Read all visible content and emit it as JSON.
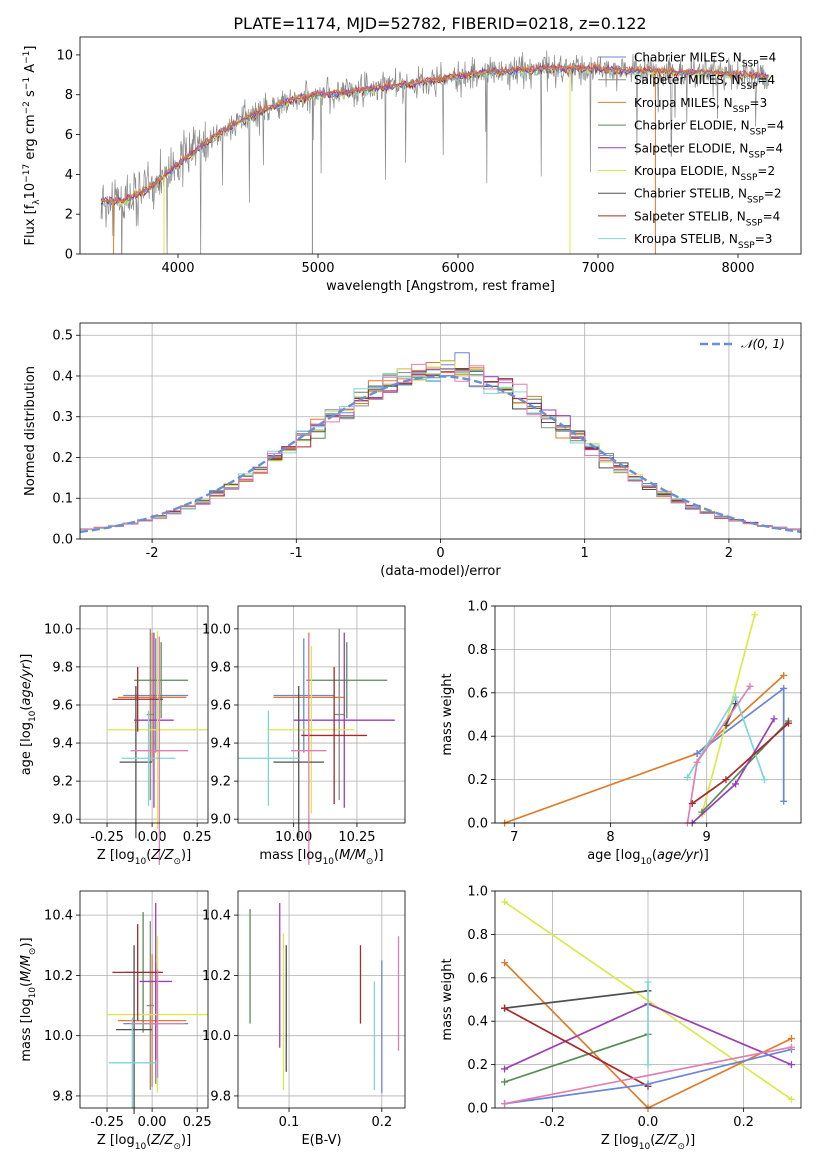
{
  "title": "PLATE=1174, MJD=52782, FIBERID=0218, z=0.122",
  "colors": {
    "Chabrier MILES": "#6b86d6",
    "Salpeter MILES": "#8a8a8a",
    "Kroupa MILES": "#e07b2a",
    "Chabrier ELODIE": "#5a8a5a",
    "Salpeter ELODIE": "#9b3fb5",
    "Kroupa ELODIE": "#dde84a",
    "Chabrier STELIB": "#505050",
    "Salpeter STELIB": "#a52a2a",
    "Kroupa STELIB": "#7fd6d6",
    "pink": "#e07fb4"
  },
  "chart_data": [
    {
      "type": "line",
      "xlabel": "wavelength [Angstrom, rest frame]",
      "ylabel": "Flux [f_λ10^-17 erg cm^-2 s^-1 A^-1]",
      "xlim": [
        3300,
        8450
      ],
      "ylim": [
        0,
        10.9
      ],
      "xticks": [
        4000,
        5000,
        6000,
        7000,
        8000
      ],
      "yticks": [
        0,
        2,
        4,
        6,
        8,
        10
      ],
      "grid": false,
      "legend_position": "top-right",
      "continuum": {
        "x": [
          3450,
          3600,
          3800,
          4000,
          4200,
          4400,
          4600,
          4800,
          5000,
          5200,
          5400,
          5600,
          5800,
          6000,
          6200,
          6400,
          6600,
          6800,
          7000,
          7200,
          7400,
          7600,
          7800,
          8000,
          8200
        ],
        "y": [
          2.7,
          2.6,
          3.3,
          4.5,
          5.6,
          6.5,
          7.2,
          7.7,
          8.0,
          8.1,
          8.3,
          8.5,
          8.7,
          8.9,
          9.1,
          9.2,
          9.3,
          9.3,
          9.3,
          9.2,
          9.2,
          9.1,
          9.1,
          9.0,
          8.9
        ]
      },
      "series": [
        {
          "name": "Chabrier MILES",
          "label_sub": "SSP",
          "n": 4
        },
        {
          "name": "Salpeter MILES",
          "label_sub": "SSP",
          "n": 4
        },
        {
          "name": "Kroupa MILES",
          "label_sub": "SSP",
          "n": 3
        },
        {
          "name": "Chabrier ELODIE",
          "label_sub": "SSP",
          "n": 4
        },
        {
          "name": "Salpeter ELODIE",
          "label_sub": "SSP",
          "n": 4
        },
        {
          "name": "Kroupa ELODIE",
          "label_sub": "SSP",
          "n": 2
        },
        {
          "name": "Chabrier STELIB",
          "label_sub": "SSP",
          "n": 2
        },
        {
          "name": "Salpeter STELIB",
          "label_sub": "SSP",
          "n": 4
        },
        {
          "name": "Kroupa STELIB",
          "label_sub": "SSP",
          "n": 3
        }
      ]
    },
    {
      "type": "histogram",
      "xlabel": "(data-model)/error",
      "ylabel": "Normed distribution",
      "xlim": [
        -2.5,
        2.5
      ],
      "ylim": [
        0,
        0.53
      ],
      "xticks": [
        -2,
        -1,
        0,
        1,
        2
      ],
      "yticks": [
        0.0,
        0.1,
        0.2,
        0.3,
        0.4,
        0.5
      ],
      "grid": true,
      "legend": "𝒩(0, 1)",
      "legend_position": "top-right",
      "bin_width": 0.1
    },
    {
      "type": "errorbar",
      "xlabel": "Z [log10(Z/Z☉)]",
      "ylabel": "age [log10(age/yr)]",
      "xlim": [
        -0.4,
        0.31
      ],
      "ylim": [
        8.98,
        10.12
      ],
      "xticks": [
        -0.25,
        0.0,
        0.25
      ],
      "yticks": [
        9.0,
        9.2,
        9.4,
        9.6,
        9.8,
        10.0
      ],
      "points": [
        {
          "c": "#6b86d6",
          "x": 0.02,
          "xe": 0.18,
          "y": 9.65,
          "ye": 0.3
        },
        {
          "c": "#8a8a8a",
          "x": -0.01,
          "xe": 0.02,
          "y": 9.55,
          "ye": 0.45
        },
        {
          "c": "#e07b2a",
          "x": 0.0,
          "xe": 0.19,
          "y": 9.64,
          "ye": 0.34
        },
        {
          "c": "#5a8a5a",
          "x": 0.05,
          "xe": 0.15,
          "y": 9.73,
          "ye": 0.2
        },
        {
          "c": "#9b3fb5",
          "x": 0.01,
          "xe": 0.11,
          "y": 9.52,
          "ye": 0.46
        },
        {
          "c": "#dde84a",
          "x": 0.03,
          "xe": 0.28,
          "y": 9.47,
          "ye": 0.52
        },
        {
          "c": "#505050",
          "x": -0.09,
          "xe": 0.09,
          "y": 9.3,
          "ye": 0.4
        },
        {
          "c": "#a52a2a",
          "x": -0.08,
          "xe": 0.14,
          "y": 9.63,
          "ye": 0.17
        },
        {
          "c": "#7fd6d6",
          "x": -0.02,
          "xe": 0.15,
          "y": 9.32,
          "ye": 0.25
        },
        {
          "c": "#e07fb4",
          "x": 0.04,
          "xe": 0.16,
          "y": 9.36,
          "ye": 0.6
        }
      ]
    },
    {
      "type": "errorbar",
      "xlabel": "mass [log10(M/M☉)]",
      "xlim": [
        9.78,
        10.44
      ],
      "ylim": [
        8.98,
        10.12
      ],
      "xticks": [
        10.0,
        10.25
      ],
      "yticks": [
        9.0,
        9.2,
        9.4,
        9.6,
        9.8,
        10.0
      ],
      "points": [
        {
          "c": "#6b86d6",
          "x": 10.04,
          "xe": 0.12,
          "y": 9.65,
          "ye": 0.3
        },
        {
          "c": "#8a8a8a",
          "x": 10.18,
          "xe": 0.02,
          "y": 9.55,
          "ye": 0.45
        },
        {
          "c": "#e07b2a",
          "x": 10.06,
          "xe": 0.14,
          "y": 9.64,
          "ye": 0.34
        },
        {
          "c": "#5a8a5a",
          "x": 10.21,
          "xe": 0.16,
          "y": 9.73,
          "ye": 0.2
        },
        {
          "c": "#9b3fb5",
          "x": 10.2,
          "xe": 0.2,
          "y": 9.52,
          "ye": 0.46
        },
        {
          "c": "#dde84a",
          "x": 10.07,
          "xe": 0.17,
          "y": 9.47,
          "ye": 0.44
        },
        {
          "c": "#505050",
          "x": 10.02,
          "xe": 0.1,
          "y": 9.3,
          "ye": 0.4
        },
        {
          "c": "#a52a2a",
          "x": 10.16,
          "xe": 0.13,
          "y": 9.44,
          "ye": 0.36
        },
        {
          "c": "#7fd6d6",
          "x": 9.9,
          "xe": 0.12,
          "y": 9.32,
          "ye": 0.25
        },
        {
          "c": "#e07fb4",
          "x": 10.06,
          "xe": 0.07,
          "y": 9.36,
          "ye": 0.6
        }
      ]
    },
    {
      "type": "line",
      "xlabel": "age [log10(age/yr)]",
      "ylabel": "mass weight",
      "xlim": [
        6.8,
        9.98
      ],
      "ylim": [
        0,
        1.0
      ],
      "xticks": [
        7,
        8,
        9
      ],
      "yticks": [
        0.0,
        0.2,
        0.4,
        0.6,
        0.8,
        1.0
      ],
      "grid": true,
      "series": [
        {
          "c": "#e07b2a",
          "x": [
            6.9,
            8.9,
            9.8
          ],
          "y": [
            0.0,
            0.32,
            0.68
          ]
        },
        {
          "c": "#6b86d6",
          "x": [
            8.9,
            9.8,
            9.8
          ],
          "y": [
            0.32,
            0.62,
            0.1
          ]
        },
        {
          "c": "#dde84a",
          "x": [
            8.95,
            9.5
          ],
          "y": [
            0.04,
            0.96
          ]
        },
        {
          "c": "#5a8a5a",
          "x": [
            8.95,
            9.85
          ],
          "y": [
            0.05,
            0.47
          ]
        },
        {
          "c": "#505050",
          "x": [
            9.2,
            9.3
          ],
          "y": [
            0.45,
            0.55
          ]
        },
        {
          "c": "#7fd6d6",
          "x": [
            8.8,
            9.3,
            9.6
          ],
          "y": [
            0.21,
            0.58,
            0.2
          ]
        },
        {
          "c": "#e07fb4",
          "x": [
            8.8,
            8.9,
            9.45
          ],
          "y": [
            0.0,
            0.28,
            0.63
          ]
        },
        {
          "c": "#9b3fb5",
          "x": [
            8.85,
            9.3,
            9.7
          ],
          "y": [
            0.0,
            0.18,
            0.48
          ]
        },
        {
          "c": "#a52a2a",
          "x": [
            8.85,
            9.2,
            9.85
          ],
          "y": [
            0.09,
            0.2,
            0.46
          ]
        }
      ]
    },
    {
      "type": "errorbar",
      "xlabel": "Z [log10(Z/Z☉)]",
      "ylabel": "mass [log10(M/M☉)]",
      "xlim": [
        -0.4,
        0.31
      ],
      "ylim": [
        9.76,
        10.48
      ],
      "xticks": [
        -0.25,
        0.0,
        0.25
      ],
      "yticks": [
        9.8,
        10.0,
        10.2,
        10.4
      ],
      "points": [
        {
          "c": "#6b86d6",
          "x": 0.02,
          "xe": 0.18,
          "y": 10.04,
          "ye": 0.2
        },
        {
          "c": "#8a8a8a",
          "x": -0.01,
          "xe": 0.02,
          "y": 10.1,
          "ye": 0.28
        },
        {
          "c": "#e07b2a",
          "x": 0.0,
          "xe": 0.19,
          "y": 10.05,
          "ye": 0.22
        },
        {
          "c": "#5a8a5a",
          "x": -0.05,
          "xe": 0.1,
          "y": 10.21,
          "ye": 0.2
        },
        {
          "c": "#9b3fb5",
          "x": 0.02,
          "xe": 0.09,
          "y": 10.18,
          "ye": 0.26
        },
        {
          "c": "#dde84a",
          "x": 0.03,
          "xe": 0.28,
          "y": 10.07,
          "ye": 0.26
        },
        {
          "c": "#505050",
          "x": -0.1,
          "xe": 0.1,
          "y": 10.02,
          "ye": 0.28
        },
        {
          "c": "#a52a2a",
          "x": -0.08,
          "xe": 0.14,
          "y": 10.21,
          "ye": 0.16
        },
        {
          "c": "#7fd6d6",
          "x": -0.11,
          "xe": 0.13,
          "y": 9.91,
          "ye": 0.15
        },
        {
          "c": "#e07fb4",
          "x": 0.03,
          "xe": 0.15,
          "y": 10.04,
          "ye": 0.18
        }
      ]
    },
    {
      "type": "errorbar",
      "xlabel": "E(B-V)",
      "xlim": [
        0.045,
        0.225
      ],
      "ylim": [
        9.76,
        10.48
      ],
      "xticks": [
        0.1,
        0.2
      ],
      "yticks": [
        9.8,
        10.0,
        10.2,
        10.4
      ],
      "points": [
        {
          "c": "#5a8a5a",
          "x": 0.058,
          "y": 10.23,
          "ye": 0.19
        },
        {
          "c": "#9b3fb5",
          "x": 0.09,
          "y": 10.2,
          "ye": 0.24
        },
        {
          "c": "#dde84a",
          "x": 0.094,
          "y": 10.08,
          "ye": 0.26
        },
        {
          "c": "#505050",
          "x": 0.097,
          "y": 10.09,
          "ye": 0.21
        },
        {
          "c": "#a52a2a",
          "x": 0.177,
          "y": 10.17,
          "ye": 0.13
        },
        {
          "c": "#7fd6d6",
          "x": 0.192,
          "y": 10.0,
          "ye": 0.18
        },
        {
          "c": "#6b86d6",
          "x": 0.2,
          "y": 10.03,
          "ye": 0.22
        },
        {
          "c": "#e07fb4",
          "x": 0.218,
          "y": 10.14,
          "ye": 0.19
        }
      ]
    },
    {
      "type": "line",
      "xlabel": "Z [log10(Z/Z☉)]",
      "ylabel": "mass weight",
      "xlim": [
        -0.32,
        0.32
      ],
      "ylim": [
        0,
        1.0
      ],
      "xticks": [
        -0.2,
        0.0,
        0.2
      ],
      "yticks": [
        0.0,
        0.2,
        0.4,
        0.6,
        0.8,
        1.0
      ],
      "grid": true,
      "series": [
        {
          "c": "#dde84a",
          "x": [
            -0.3,
            0.3
          ],
          "y": [
            0.95,
            0.04
          ]
        },
        {
          "c": "#e07b2a",
          "x": [
            -0.3,
            0.0,
            0.3
          ],
          "y": [
            0.67,
            0.0,
            0.32
          ]
        },
        {
          "c": "#505050",
          "x": [
            -0.3,
            0.0
          ],
          "y": [
            0.46,
            0.54
          ]
        },
        {
          "c": "#9b3fb5",
          "x": [
            -0.3,
            0.0,
            0.3
          ],
          "y": [
            0.18,
            0.48,
            0.2
          ]
        },
        {
          "c": "#5a8a5a",
          "x": [
            -0.3,
            0.0
          ],
          "y": [
            0.12,
            0.34
          ]
        },
        {
          "c": "#a52a2a",
          "x": [
            -0.3,
            0.0
          ],
          "y": [
            0.46,
            0.1
          ]
        },
        {
          "c": "#6b86d6",
          "x": [
            -0.3,
            0.0,
            0.3
          ],
          "y": [
            0.02,
            0.11,
            0.27
          ]
        },
        {
          "c": "#e07fb4",
          "x": [
            -0.3,
            0.3
          ],
          "y": [
            0.02,
            0.28
          ]
        },
        {
          "c": "#7fd6d6",
          "x": [
            0.0,
            0.0
          ],
          "y": [
            0.2,
            0.58
          ]
        }
      ]
    }
  ]
}
